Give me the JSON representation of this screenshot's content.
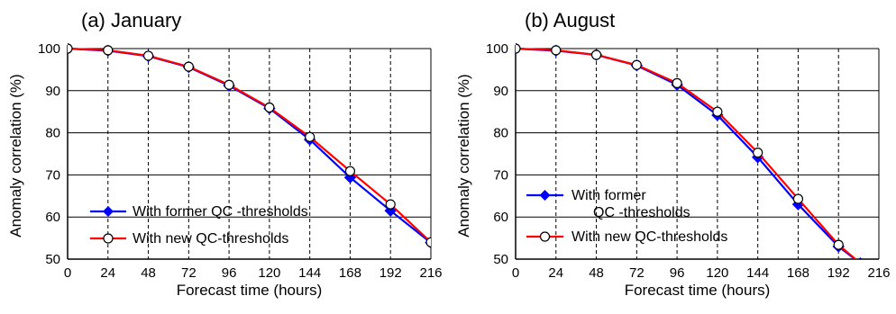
{
  "chart_data": [
    {
      "type": "line",
      "title": "(a) January",
      "xlabel": "Forecast time (hours)",
      "ylabel": "Anomaly correlation (%)",
      "x": [
        0,
        24,
        48,
        72,
        96,
        120,
        144,
        168,
        192,
        216
      ],
      "xlim": [
        0,
        216
      ],
      "ylim": [
        50,
        100
      ],
      "x_ticks": [
        0,
        24,
        48,
        72,
        96,
        120,
        144,
        168,
        192,
        216
      ],
      "y_ticks": [
        50,
        60,
        70,
        80,
        90,
        100
      ],
      "grid": true,
      "series": [
        {
          "name": "With former QC -thresholds",
          "color": "#0000ff",
          "marker": "filled-diamond",
          "values": [
            100,
            99.5,
            98.2,
            95.6,
            91.2,
            85.8,
            78.4,
            69.4,
            61.5,
            53.9
          ]
        },
        {
          "name": "With new QC-thresholds",
          "color": "#ff0000",
          "marker": "open-circle",
          "values": [
            100,
            99.6,
            98.3,
            95.7,
            91.4,
            86.0,
            79.0,
            70.9,
            63.0,
            54.0
          ]
        }
      ],
      "legend_position": "bottom-left"
    },
    {
      "type": "line",
      "title": "(b) August",
      "xlabel": "Forecast time (hours)",
      "ylabel": "Anomaly correlation (%)",
      "x": [
        0,
        24,
        48,
        72,
        96,
        120,
        144,
        168,
        192,
        205
      ],
      "xlim": [
        0,
        216
      ],
      "ylim": [
        50,
        100
      ],
      "x_ticks": [
        0,
        24,
        48,
        72,
        96,
        120,
        144,
        168,
        192,
        216
      ],
      "y_ticks": [
        50,
        60,
        70,
        80,
        90,
        100
      ],
      "grid": true,
      "series": [
        {
          "name": "With former\nQC -thresholds",
          "color": "#0000ff",
          "marker": "filled-diamond",
          "values": [
            100,
            99.5,
            98.5,
            96.0,
            91.4,
            84.2,
            74.2,
            63.0,
            53.0,
            49.0
          ]
        },
        {
          "name": "With new QC-thresholds",
          "color": "#ff0000",
          "marker": "open-circle",
          "values": [
            100,
            99.6,
            98.5,
            96.1,
            91.8,
            85.0,
            75.3,
            64.3,
            53.4,
            49.0
          ]
        }
      ],
      "legend_position": "bottom-left"
    }
  ]
}
